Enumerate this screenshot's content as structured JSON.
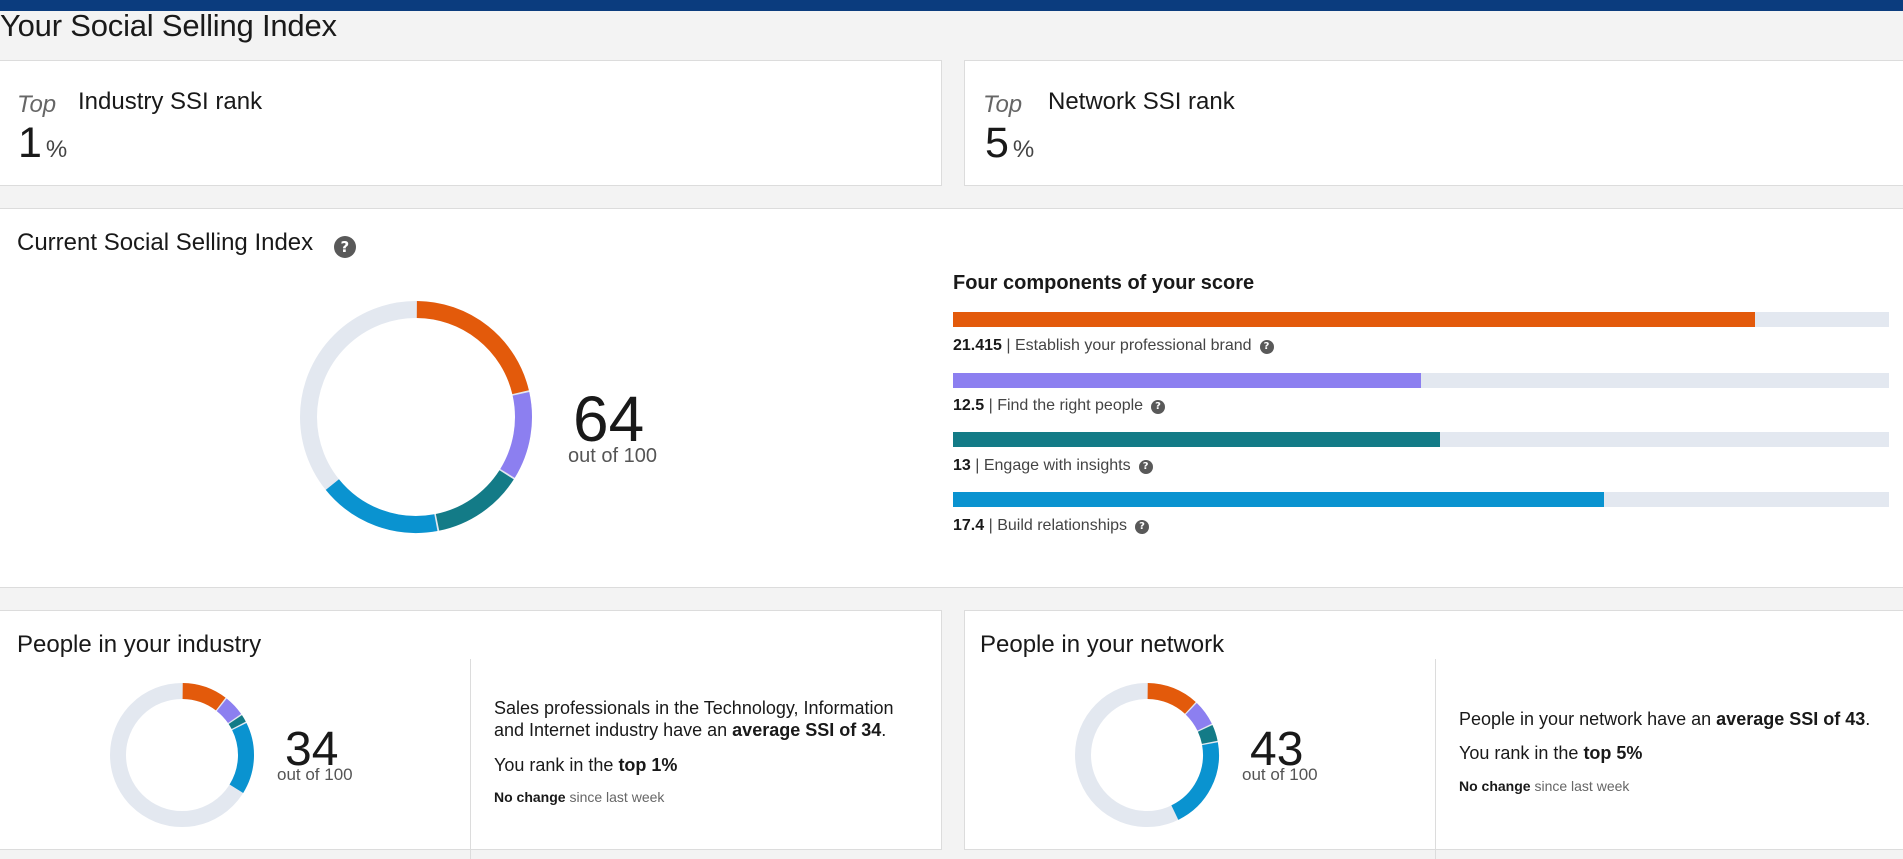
{
  "page": {
    "title": "Your Social Selling Index"
  },
  "ranks": {
    "industry": {
      "top_label": "Top",
      "title": "Industry SSI rank",
      "value": "1",
      "unit": "%"
    },
    "network": {
      "top_label": "Top",
      "title": "Network SSI rank",
      "value": "5",
      "unit": "%"
    }
  },
  "current": {
    "title": "Current Social Selling Index",
    "help_glyph": "?",
    "score": "64",
    "out_of": "out of 100"
  },
  "components": {
    "title": "Four components of your score",
    "max_each": 25,
    "items": [
      {
        "value": 21.415,
        "value_text": "21.415",
        "separator": " | ",
        "label": "Establish your professional brand",
        "color": "#e35a0b"
      },
      {
        "value": 12.5,
        "value_text": "12.5",
        "separator": " | ",
        "label": "Find the right people",
        "color": "#8c7ff0"
      },
      {
        "value": 13,
        "value_text": "13",
        "separator": " | ",
        "label": "Engage with insights",
        "color": "#137b87"
      },
      {
        "value": 17.4,
        "value_text": "17.4",
        "separator": " | ",
        "label": "Build relationships",
        "color": "#0a93d0"
      }
    ],
    "track_color": "#e3e8f0"
  },
  "industry_people": {
    "title": "People in your industry",
    "score": "34",
    "out_of": "out of 100",
    "segments": [
      10.5,
      5,
      2,
      16.5
    ],
    "desc_line1": "Sales professionals in the Technology, Information",
    "desc_line2_pre": "and Internet industry have an ",
    "desc_line2_bold": "average SSI of 34",
    "desc_line2_post": ".",
    "rank_pre": "You rank in the ",
    "rank_bold": "top 1%",
    "change_bold": "No change",
    "change_rest": " since last week"
  },
  "network_people": {
    "title": "People in your network",
    "score": "43",
    "out_of": "out of 100",
    "segments": [
      12,
      6,
      4,
      21
    ],
    "desc_pre": "People in your network have an ",
    "desc_bold": "average SSI of 43",
    "desc_post": ".",
    "rank_pre": "You rank in the ",
    "rank_bold": "top 5%",
    "change_bold": "No change",
    "change_rest": " since last week"
  }
}
